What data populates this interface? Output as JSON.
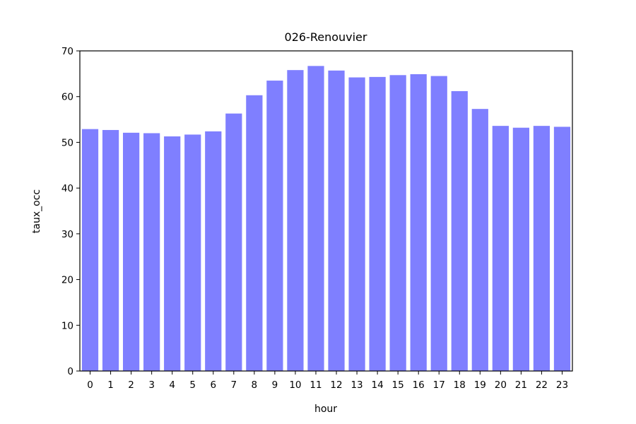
{
  "chart_data": {
    "type": "bar",
    "title": "026-Renouvier",
    "xlabel": "hour",
    "ylabel": "taux_occ",
    "categories": [
      "0",
      "1",
      "2",
      "3",
      "4",
      "5",
      "6",
      "7",
      "8",
      "9",
      "10",
      "11",
      "12",
      "13",
      "14",
      "15",
      "16",
      "17",
      "18",
      "19",
      "20",
      "21",
      "22",
      "23"
    ],
    "values": [
      52.9,
      52.7,
      52.1,
      52.0,
      51.3,
      51.7,
      52.4,
      56.3,
      60.3,
      63.5,
      65.8,
      66.7,
      65.7,
      64.2,
      64.3,
      64.7,
      64.9,
      64.5,
      61.2,
      57.3,
      53.6,
      53.2,
      53.6,
      53.4
    ],
    "ylim": [
      0,
      70
    ],
    "yticks": [
      0,
      10,
      20,
      30,
      40,
      50,
      60,
      70
    ],
    "bar_color": "#7f7fff",
    "grid": false,
    "legend": "none"
  }
}
